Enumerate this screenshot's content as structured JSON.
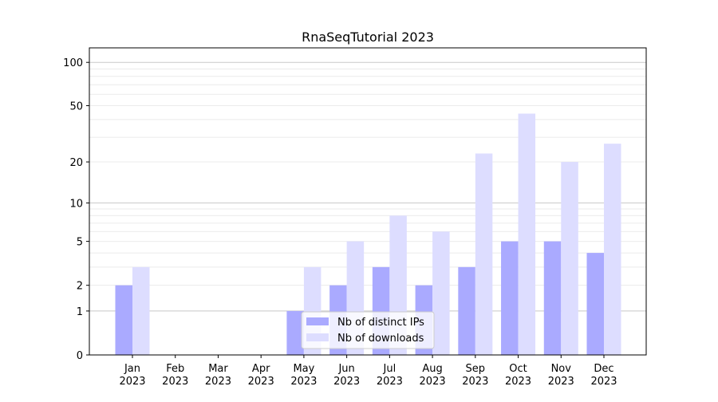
{
  "chart_data": {
    "type": "bar",
    "title": "RnaSeqTutorial 2023",
    "xlabel": "",
    "ylabel": "",
    "yscale": "log(1+y)",
    "ylim": [
      0,
      126
    ],
    "yticks": [
      0,
      1,
      2,
      5,
      10,
      20,
      50,
      100
    ],
    "ytick_labels": [
      "0",
      "1",
      "2",
      "5",
      "10",
      "20",
      "50",
      "100"
    ],
    "grid": true,
    "categories": [
      [
        "Jan",
        "2023"
      ],
      [
        "Feb",
        "2023"
      ],
      [
        "Mar",
        "2023"
      ],
      [
        "Apr",
        "2023"
      ],
      [
        "May",
        "2023"
      ],
      [
        "Jun",
        "2023"
      ],
      [
        "Jul",
        "2023"
      ],
      [
        "Aug",
        "2023"
      ],
      [
        "Sep",
        "2023"
      ],
      [
        "Oct",
        "2023"
      ],
      [
        "Nov",
        "2023"
      ],
      [
        "Dec",
        "2023"
      ]
    ],
    "series": [
      {
        "name": "Nb of distinct IPs",
        "color": "#aaaaff",
        "values": [
          2,
          0,
          0,
          0,
          1,
          2,
          3,
          2,
          3,
          5,
          5,
          4
        ]
      },
      {
        "name": "Nb of downloads",
        "color": "#ddddff",
        "values": [
          3,
          0,
          0,
          0,
          3,
          5,
          8,
          6,
          23,
          44,
          20,
          27
        ]
      }
    ],
    "legend": "bottom-center"
  }
}
